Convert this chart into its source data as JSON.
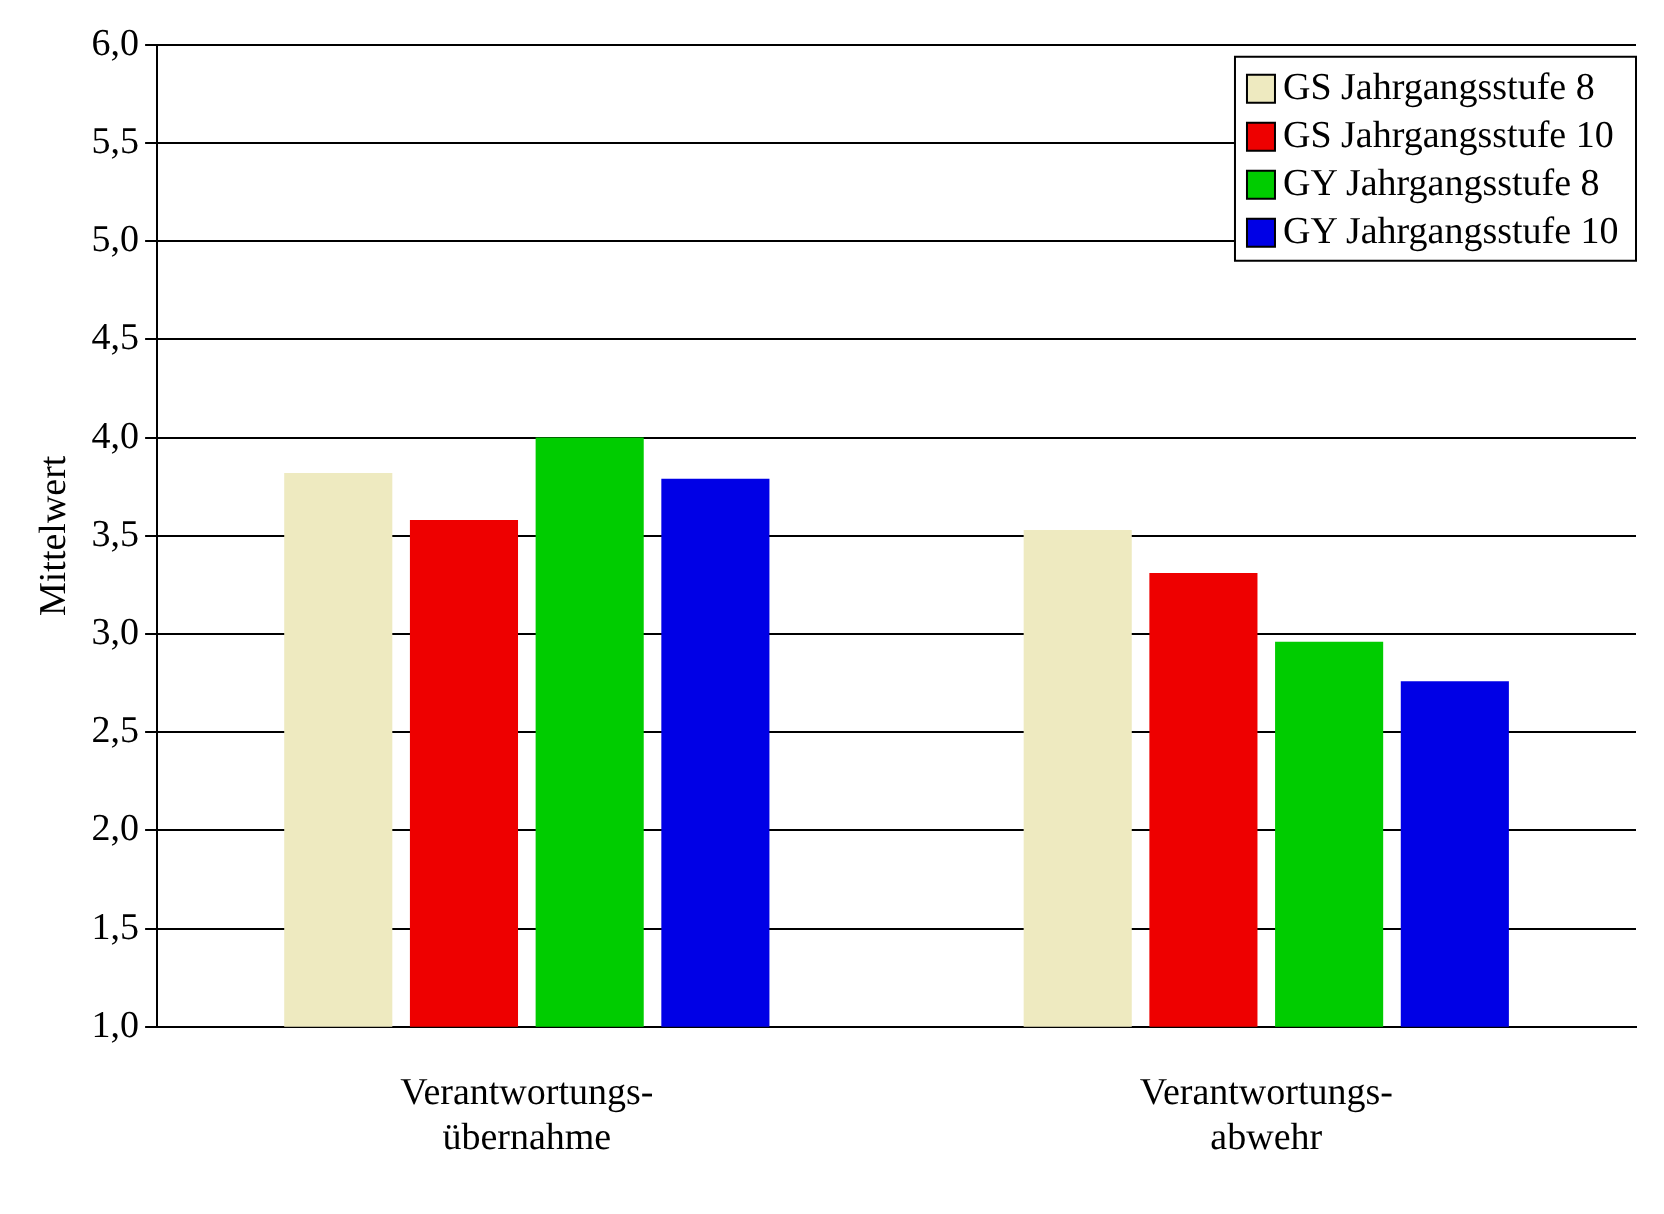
{
  "chart_data": {
    "type": "bar",
    "ylabel": "Mittelwert",
    "categories": [
      "Verantwortungs-\nübernahme",
      "Verantwortungs-\nabwehr"
    ],
    "series": [
      {
        "name": "GS Jahrgangsstufe 8",
        "color": "#eeeac0",
        "values": [
          3.82,
          3.53
        ]
      },
      {
        "name": "GS Jahrgangsstufe 10",
        "color": "#ee0000",
        "values": [
          3.58,
          3.31
        ]
      },
      {
        "name": "GY Jahrgangsstufe 8",
        "color": "#00cc00",
        "values": [
          4.0,
          2.96
        ]
      },
      {
        "name": "GY Jahrgangsstufe 10",
        "color": "#0000e6",
        "values": [
          3.79,
          2.76
        ]
      }
    ],
    "ylim": [
      1,
      6
    ],
    "yticks": [
      {
        "value": 1,
        "label": "1,0"
      },
      {
        "value": 1.5,
        "label": "1,5"
      },
      {
        "value": 2,
        "label": "2,0"
      },
      {
        "value": 2.5,
        "label": "2,5"
      },
      {
        "value": 3,
        "label": "3,0"
      },
      {
        "value": 3.5,
        "label": "3,5"
      },
      {
        "value": 4,
        "label": "4,0"
      },
      {
        "value": 4.5,
        "label": "4,5"
      },
      {
        "value": 5,
        "label": "5,0"
      },
      {
        "value": 5.5,
        "label": "5,5"
      },
      {
        "value": 6,
        "label": "6,0"
      }
    ],
    "grid": "y",
    "legend": "top right"
  }
}
